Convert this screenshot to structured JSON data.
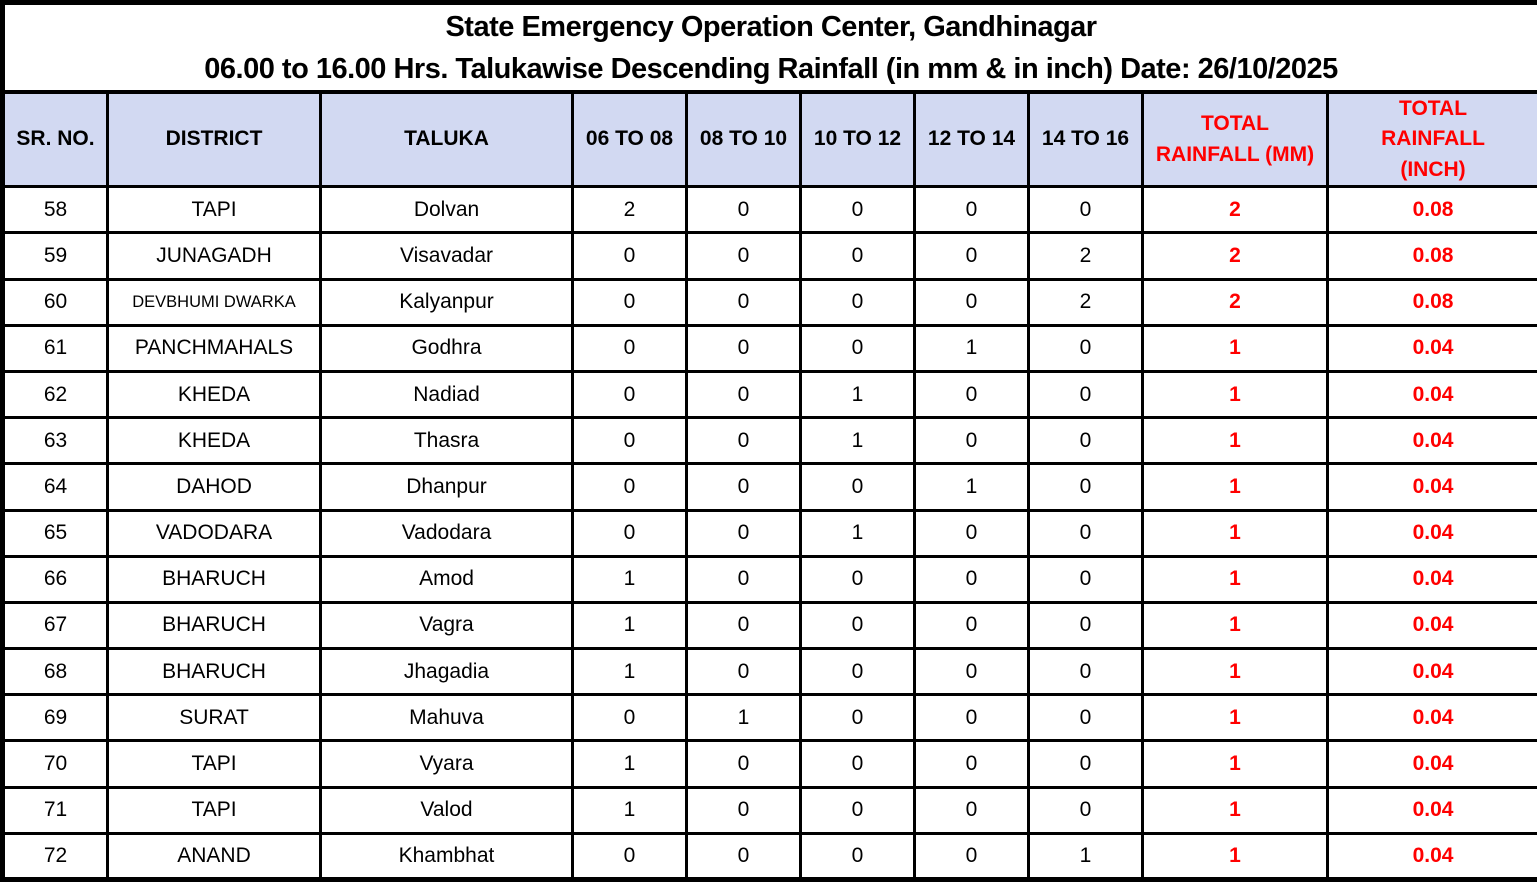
{
  "title": {
    "line1": "State Emergency Operation Center, Gandhinagar",
    "line2": "06.00 to 16.00 Hrs. Talukawise Descending Rainfall (in mm & in inch) Date: 26/10/2025"
  },
  "table": {
    "columns": [
      {
        "label": "SR. NO.",
        "field": "sr-no"
      },
      {
        "label": "DISTRICT",
        "field": "district"
      },
      {
        "label": "TALUKA",
        "field": "taluka"
      },
      {
        "label": "06 TO 08",
        "field": "rain-06-to-08"
      },
      {
        "label": "08 TO 10",
        "field": "rain-08-to-10"
      },
      {
        "label": "10 TO 12",
        "field": "rain-10-to-12"
      },
      {
        "label": "12 TO 14",
        "field": "rain-12-to-14"
      },
      {
        "label": "14 TO 16",
        "field": "rain-14-to-16"
      },
      {
        "label": "TOTAL RAINFALL (MM)",
        "field": "total-rainfall-mm"
      },
      {
        "label": "TOTAL RAINFALL (INCH)",
        "field": "total-rainfall-inch"
      }
    ],
    "rows": [
      [
        "58",
        "TAPI",
        "Dolvan",
        "2",
        "0",
        "0",
        "0",
        "0",
        "2",
        "0.08"
      ],
      [
        "59",
        "JUNAGADH",
        "Visavadar",
        "0",
        "0",
        "0",
        "0",
        "2",
        "2",
        "0.08"
      ],
      [
        "60",
        "DEVBHUMI DWARKA",
        "Kalyanpur",
        "0",
        "0",
        "0",
        "0",
        "2",
        "2",
        "0.08"
      ],
      [
        "61",
        "PANCHMAHALS",
        "Godhra",
        "0",
        "0",
        "0",
        "1",
        "0",
        "1",
        "0.04"
      ],
      [
        "62",
        "KHEDA",
        "Nadiad",
        "0",
        "0",
        "1",
        "0",
        "0",
        "1",
        "0.04"
      ],
      [
        "63",
        "KHEDA",
        "Thasra",
        "0",
        "0",
        "1",
        "0",
        "0",
        "1",
        "0.04"
      ],
      [
        "64",
        "DAHOD",
        "Dhanpur",
        "0",
        "0",
        "0",
        "1",
        "0",
        "1",
        "0.04"
      ],
      [
        "65",
        "VADODARA",
        "Vadodara",
        "0",
        "0",
        "1",
        "0",
        "0",
        "1",
        "0.04"
      ],
      [
        "66",
        "BHARUCH",
        "Amod",
        "1",
        "0",
        "0",
        "0",
        "0",
        "1",
        "0.04"
      ],
      [
        "67",
        "BHARUCH",
        "Vagra",
        "1",
        "0",
        "0",
        "0",
        "0",
        "1",
        "0.04"
      ],
      [
        "68",
        "BHARUCH",
        "Jhagadia",
        "1",
        "0",
        "0",
        "0",
        "0",
        "1",
        "0.04"
      ],
      [
        "69",
        "SURAT",
        "Mahuva",
        "0",
        "1",
        "0",
        "0",
        "0",
        "1",
        "0.04"
      ],
      [
        "70",
        "TAPI",
        "Vyara",
        "1",
        "0",
        "0",
        "0",
        "0",
        "1",
        "0.04"
      ],
      [
        "71",
        "TAPI",
        "Valod",
        "1",
        "0",
        "0",
        "0",
        "0",
        "1",
        "0.04"
      ],
      [
        "72",
        "ANAND",
        "Khambhat",
        "0",
        "0",
        "0",
        "0",
        "1",
        "1",
        "0.04"
      ]
    ]
  },
  "colors": {
    "header_bg": "#d2d9f2",
    "accent_red": "#ff0000",
    "border": "#000000"
  }
}
